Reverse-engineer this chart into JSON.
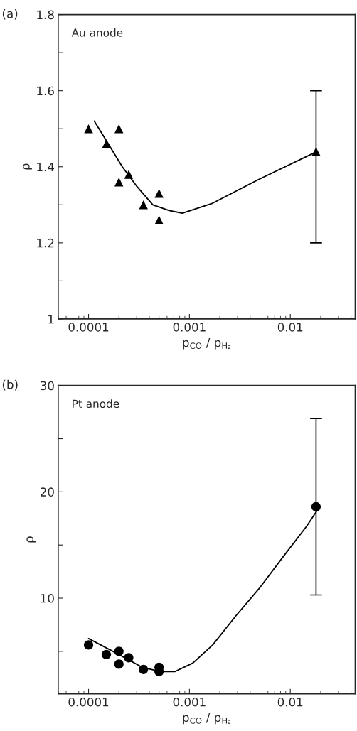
{
  "chart_data": [
    {
      "type": "scatter",
      "xlabel": "p$_{CO}$ / p$_{H₂}$",
      "ylabel": "ρ",
      "annotations": [
        "(a)",
        "Au anode"
      ],
      "log": "x",
      "xlim": [
        5e-05,
        0.044
      ],
      "ylim": [
        1,
        1.8
      ],
      "xticks": [
        0.0001,
        0.001,
        0.01
      ],
      "yticks": [
        1,
        {
          "value": 1.1,
          "label": null
        },
        1.2,
        {
          "value": 1.3,
          "label": null
        },
        1.4,
        {
          "value": 1.5,
          "label": null
        },
        1.6,
        {
          "value": 1.7,
          "label": null
        },
        1.8
      ],
      "grid": false,
      "legend": false,
      "series": [
        {
          "type": "scatter",
          "color": "#000000",
          "marker": "triangle",
          "x": [
            0.0001,
            0.00015,
            0.0002,
            0.0002,
            0.00025,
            0.00035,
            0.0005,
            0.0005,
            0.018
          ],
          "values": [
            1.5,
            1.46,
            1.5,
            1.36,
            1.38,
            1.3,
            1.33,
            1.26,
            1.44
          ],
          "errors": [
            null,
            null,
            null,
            null,
            null,
            null,
            null,
            null,
            [
              1.2,
              1.6
            ]
          ]
        },
        {
          "type": "line",
          "color": "#000000",
          "marker": "none",
          "line_style": "solid",
          "x": [
            0.000114,
            0.000149,
            0.000216,
            0.000298,
            0.000434,
            0.00063,
            0.00085,
            0.00166,
            0.0048,
            0.0183
          ],
          "values": [
            1.52,
            1.47,
            1.4,
            1.35,
            1.3,
            1.285,
            1.278,
            1.303,
            1.366,
            1.44
          ]
        }
      ]
    },
    {
      "type": "scatter",
      "xlabel": "p$_{CO}$ / p$_{H₂}$",
      "ylabel": "ρ",
      "annotations": [
        "(b)",
        "Pt anode"
      ],
      "log": "x",
      "xlim": [
        5e-05,
        0.044
      ],
      "ylim": [
        1,
        30
      ],
      "xticks": [
        0.0001,
        0.001,
        0.01
      ],
      "yticks": [
        {
          "value": 5,
          "label": null
        },
        10,
        {
          "value": 15,
          "label": null
        },
        20,
        {
          "value": 25,
          "label": null
        },
        30
      ],
      "grid": false,
      "legend": false,
      "series": [
        {
          "type": "scatter",
          "color": "#000000",
          "marker": "circle",
          "x": [
            0.0001,
            0.00015,
            0.0002,
            0.0002,
            0.00025,
            0.00035,
            0.0005,
            0.0005,
            0.018
          ],
          "values": [
            5.6,
            4.7,
            5.0,
            3.8,
            4.4,
            3.3,
            3.5,
            3.1,
            18.6
          ],
          "errors": [
            null,
            null,
            null,
            null,
            null,
            null,
            null,
            null,
            [
              10.3,
              26.9
            ]
          ]
        },
        {
          "type": "line",
          "color": "#000000",
          "marker": "none",
          "line_style": "solid",
          "x": [
            0.0001,
            0.0002,
            0.00034,
            0.00052,
            0.00072,
            0.00108,
            0.0017,
            0.00292,
            0.005,
            0.0085,
            0.0146,
            0.0183
          ],
          "values": [
            6.2,
            4.7,
            3.5,
            3.1,
            3.1,
            3.9,
            5.6,
            8.4,
            11.0,
            13.9,
            16.8,
            18.2
          ]
        }
      ]
    }
  ]
}
